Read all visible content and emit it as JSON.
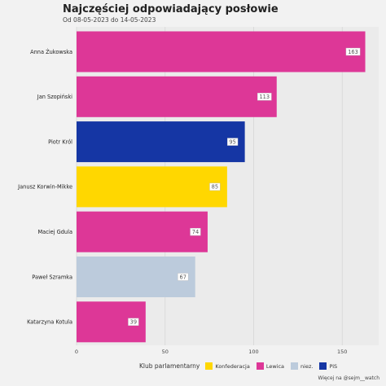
{
  "chart_data": {
    "type": "bar",
    "orientation": "horizontal",
    "title": "Najczęściej odpowiadający posłowie",
    "subtitle": "Od 08-05-2023 do 14-05-2023",
    "xlim": [
      0,
      165
    ],
    "xticks": [
      0,
      50,
      100,
      150
    ],
    "grid": true,
    "legend_position": "bottom",
    "categories": [
      "Anna Żukowska",
      "Jan Szopiński",
      "Piotr Król",
      "Janusz Korwin-Mikke",
      "Maciej Gdula",
      "Paweł Szramka",
      "Katarzyna Kotula"
    ],
    "values": [
      163,
      113,
      95,
      85,
      74,
      67,
      39
    ],
    "labels": [
      "163",
      "113",
      "95",
      "85",
      "74",
      "67",
      "39"
    ],
    "groups": [
      "Lewica",
      "Lewica",
      "PiS",
      "Konfederacja",
      "Lewica",
      "niez.",
      "Lewica"
    ],
    "legend": {
      "title": "Klub parlamentarny",
      "entries": [
        {
          "name": "Konfederacja",
          "color": "#ffd700"
        },
        {
          "name": "Lewica",
          "color": "#dd3797"
        },
        {
          "name": "niez.",
          "color": "#bccbdc"
        },
        {
          "name": "PiS",
          "color": "#1536a4"
        }
      ]
    },
    "caption": "Więcej na @sejm__watch"
  }
}
